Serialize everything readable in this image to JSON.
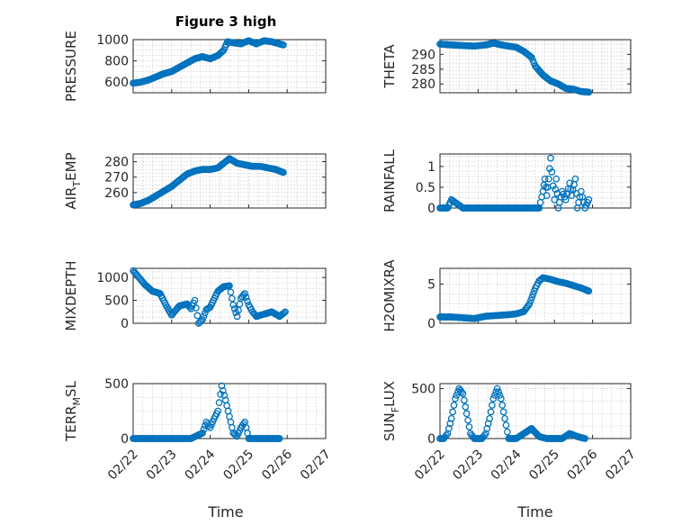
{
  "figure": {
    "title": "Figure 3 high",
    "xlabel": "Time",
    "date_ticks": [
      "02/22",
      "02/23",
      "02/24",
      "02/25",
      "02/26",
      "02/27"
    ],
    "marker_color": "#0072BD"
  },
  "chart_data": [
    {
      "type": "scatter",
      "ylabel": "PRESSURE",
      "xlim": [
        "02/22",
        "02/27"
      ],
      "ylim": [
        500,
        1000
      ],
      "yticks": [
        600,
        800,
        1000
      ],
      "grid": true,
      "x_day": [
        0,
        0.2,
        0.4,
        0.6,
        0.8,
        1.0,
        1.2,
        1.4,
        1.6,
        1.8,
        2.0,
        2.2,
        2.35,
        2.45,
        2.6,
        2.8,
        3.0,
        3.2,
        3.4,
        3.6,
        3.8,
        3.9
      ],
      "values": [
        590,
        600,
        620,
        650,
        680,
        700,
        740,
        780,
        820,
        840,
        820,
        850,
        900,
        980,
        970,
        960,
        990,
        960,
        990,
        980,
        960,
        950
      ]
    },
    {
      "type": "scatter",
      "ylabel": "THETA",
      "xlim": [
        "02/22",
        "02/27"
      ],
      "ylim": [
        277,
        295
      ],
      "yticks": [
        280,
        285,
        290
      ],
      "grid": true,
      "x_day": [
        0,
        0.3,
        0.6,
        0.9,
        1.2,
        1.4,
        1.7,
        2.0,
        2.2,
        2.4,
        2.5,
        2.7,
        2.9,
        3.1,
        3.3,
        3.5,
        3.7,
        3.9
      ],
      "values": [
        293.5,
        293.2,
        293,
        292.8,
        293.2,
        293.8,
        293,
        292.4,
        291,
        289,
        286,
        283,
        281,
        280,
        278.5,
        278.2,
        277.4,
        277.2
      ]
    },
    {
      "type": "scatter",
      "ylabel": "AIR_TEMP",
      "xlim": [
        "02/22",
        "02/27"
      ],
      "ylim": [
        250,
        285
      ],
      "yticks": [
        260,
        270,
        280
      ],
      "grid": true,
      "x_day": [
        0,
        0.2,
        0.4,
        0.6,
        0.8,
        1.0,
        1.2,
        1.4,
        1.6,
        1.8,
        2.0,
        2.2,
        2.3,
        2.5,
        2.7,
        2.9,
        3.1,
        3.3,
        3.5,
        3.7,
        3.9
      ],
      "values": [
        252,
        253,
        255,
        258,
        261,
        264,
        268,
        272,
        274,
        275,
        275,
        276,
        278,
        282,
        279,
        278,
        277,
        277,
        276,
        275,
        273
      ]
    },
    {
      "type": "scatter",
      "ylabel": "RAINFALL",
      "xlim": [
        "02/22",
        "02/27"
      ],
      "ylim": [
        0,
        1.3
      ],
      "yticks": [
        0,
        0.5,
        1
      ],
      "grid": true,
      "x_day": [
        0,
        0.2,
        0.3,
        0.6,
        1.0,
        1.5,
        2.0,
        2.6,
        2.7,
        2.75,
        2.8,
        2.85,
        2.9,
        3.0,
        3.05,
        3.1,
        3.2,
        3.3,
        3.4,
        3.45,
        3.55,
        3.6,
        3.7,
        3.8,
        3.9
      ],
      "values": [
        0,
        0,
        0.2,
        0,
        0,
        0,
        0,
        0,
        0.4,
        0.7,
        0.3,
        0.7,
        1.2,
        0.2,
        0.7,
        0,
        0.4,
        0.2,
        0.6,
        0.3,
        0.7,
        0,
        0.4,
        0,
        0.2
      ]
    },
    {
      "type": "scatter",
      "ylabel": "MIXDEPTH",
      "xlim": [
        "02/22",
        "02/27"
      ],
      "ylim": [
        0,
        1200
      ],
      "yticks": [
        0,
        500,
        1000
      ],
      "grid": true,
      "x_day": [
        0,
        0.15,
        0.3,
        0.5,
        0.7,
        0.85,
        1.0,
        1.2,
        1.4,
        1.5,
        1.6,
        1.7,
        1.8,
        1.9,
        2.0,
        2.2,
        2.35,
        2.5,
        2.6,
        2.7,
        2.8,
        2.9,
        3.0,
        3.1,
        3.2,
        3.4,
        3.6,
        3.8,
        3.95
      ],
      "values": [
        1150,
        1000,
        850,
        700,
        650,
        400,
        180,
        380,
        420,
        320,
        500,
        0,
        80,
        300,
        350,
        700,
        800,
        820,
        400,
        150,
        550,
        650,
        400,
        250,
        150,
        200,
        250,
        150,
        250
      ]
    },
    {
      "type": "scatter",
      "ylabel": "H2OMIXRA",
      "xlim": [
        "02/22",
        "02/27"
      ],
      "ylim": [
        0,
        7
      ],
      "yticks": [
        0,
        5
      ],
      "grid": true,
      "x_day": [
        0,
        0.3,
        0.6,
        0.9,
        1.2,
        1.5,
        1.8,
        2.0,
        2.2,
        2.35,
        2.5,
        2.6,
        2.7,
        2.9,
        3.1,
        3.3,
        3.5,
        3.7,
        3.9
      ],
      "values": [
        0.8,
        0.8,
        0.7,
        0.6,
        0.9,
        1.0,
        1.1,
        1.2,
        1.5,
        2.5,
        4.5,
        5.4,
        5.8,
        5.6,
        5.3,
        5.1,
        4.8,
        4.5,
        4.1
      ]
    },
    {
      "type": "scatter",
      "ylabel": "TERR_MSL",
      "xlim": [
        "02/22",
        "02/27"
      ],
      "ylim": [
        0,
        500
      ],
      "yticks": [
        0,
        500
      ],
      "grid": true,
      "x_day": [
        0,
        0.5,
        1.0,
        1.5,
        1.8,
        1.9,
        2.0,
        2.1,
        2.2,
        2.3,
        2.4,
        2.5,
        2.6,
        2.7,
        2.8,
        2.9,
        3.0,
        3.1,
        3.2,
        3.4,
        3.6,
        3.8
      ],
      "values": [
        0,
        0,
        0,
        0,
        50,
        150,
        100,
        180,
        250,
        480,
        350,
        200,
        50,
        20,
        100,
        150,
        0,
        0,
        0,
        0,
        0,
        0
      ]
    },
    {
      "type": "scatter",
      "ylabel": "SUN_FLUX",
      "xlim": [
        "02/22",
        "02/27"
      ],
      "ylim": [
        0,
        550
      ],
      "yticks": [
        0,
        500
      ],
      "grid": true,
      "x_day": [
        0,
        0.1,
        0.2,
        0.3,
        0.4,
        0.5,
        0.6,
        0.7,
        0.8,
        0.9,
        1.0,
        1.1,
        1.2,
        1.3,
        1.4,
        1.5,
        1.6,
        1.7,
        1.8,
        2.0,
        2.2,
        2.4,
        2.6,
        2.8,
        3.0,
        3.2,
        3.4,
        3.6,
        3.8
      ],
      "values": [
        0,
        0,
        50,
        200,
        400,
        500,
        450,
        250,
        50,
        0,
        0,
        0,
        50,
        200,
        400,
        500,
        400,
        200,
        0,
        0,
        50,
        100,
        20,
        0,
        0,
        0,
        50,
        20,
        0
      ]
    }
  ]
}
